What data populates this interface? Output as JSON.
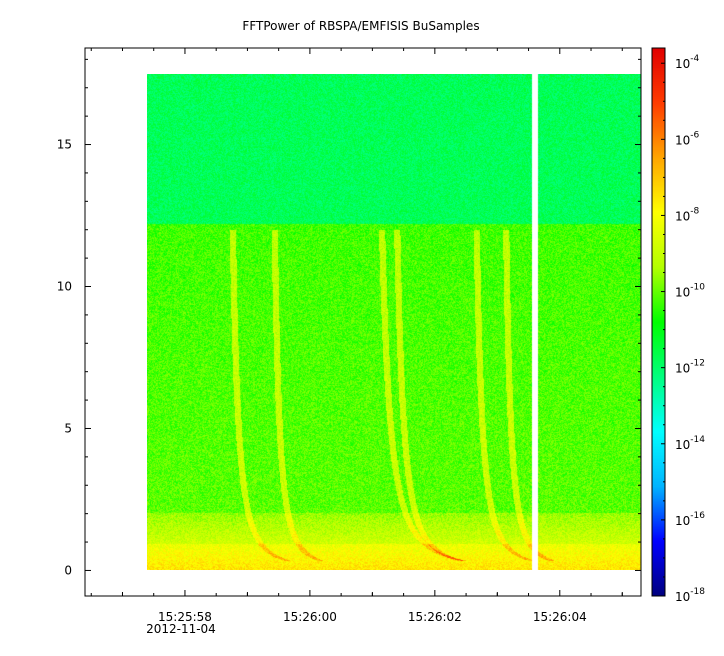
{
  "chart_data": {
    "type": "heatmap",
    "title": "FFTPower of RBSPA/EMFISIS  BuSamples",
    "x_tick_labels": [
      "15:25:58",
      "15:26:00",
      "15:26:02",
      "15:26:04"
    ],
    "x_tick_values_sec": [
      58,
      60,
      62,
      64
    ],
    "date_label": "2012-11-04",
    "y_tick_labels": [
      "0",
      "5",
      "10",
      "15"
    ],
    "y_tick_values": [
      0,
      5,
      10,
      15
    ],
    "ylim": [
      -0.9,
      18.4
    ],
    "xlim_sec": [
      56.4,
      65.3
    ],
    "data_extent": {
      "t_start_sec": 57.4,
      "t_end_sec": 65.3,
      "y_min": 0,
      "y_max": 17.5
    },
    "data_gap_sec": [
      63.55,
      63.65
    ],
    "colorbar": {
      "scale": "log",
      "range_exponents": [
        -18,
        -3.6
      ],
      "tick_base": "10",
      "tick_exponents": [
        "-4",
        "-6",
        "-8",
        "-10",
        "-12",
        "-14",
        "-16",
        "-18"
      ],
      "tick_exponent_values": [
        -4,
        -6,
        -8,
        -10,
        -12,
        -14,
        -16,
        -18
      ],
      "colormap": [
        "#00007f",
        "#0000ff",
        "#00b4ff",
        "#00ffff",
        "#00ff7f",
        "#00ff00",
        "#b4ff00",
        "#ffff00",
        "#ffa500",
        "#ff3c00",
        "#e00000"
      ]
    },
    "grid": false,
    "legend": "none"
  }
}
